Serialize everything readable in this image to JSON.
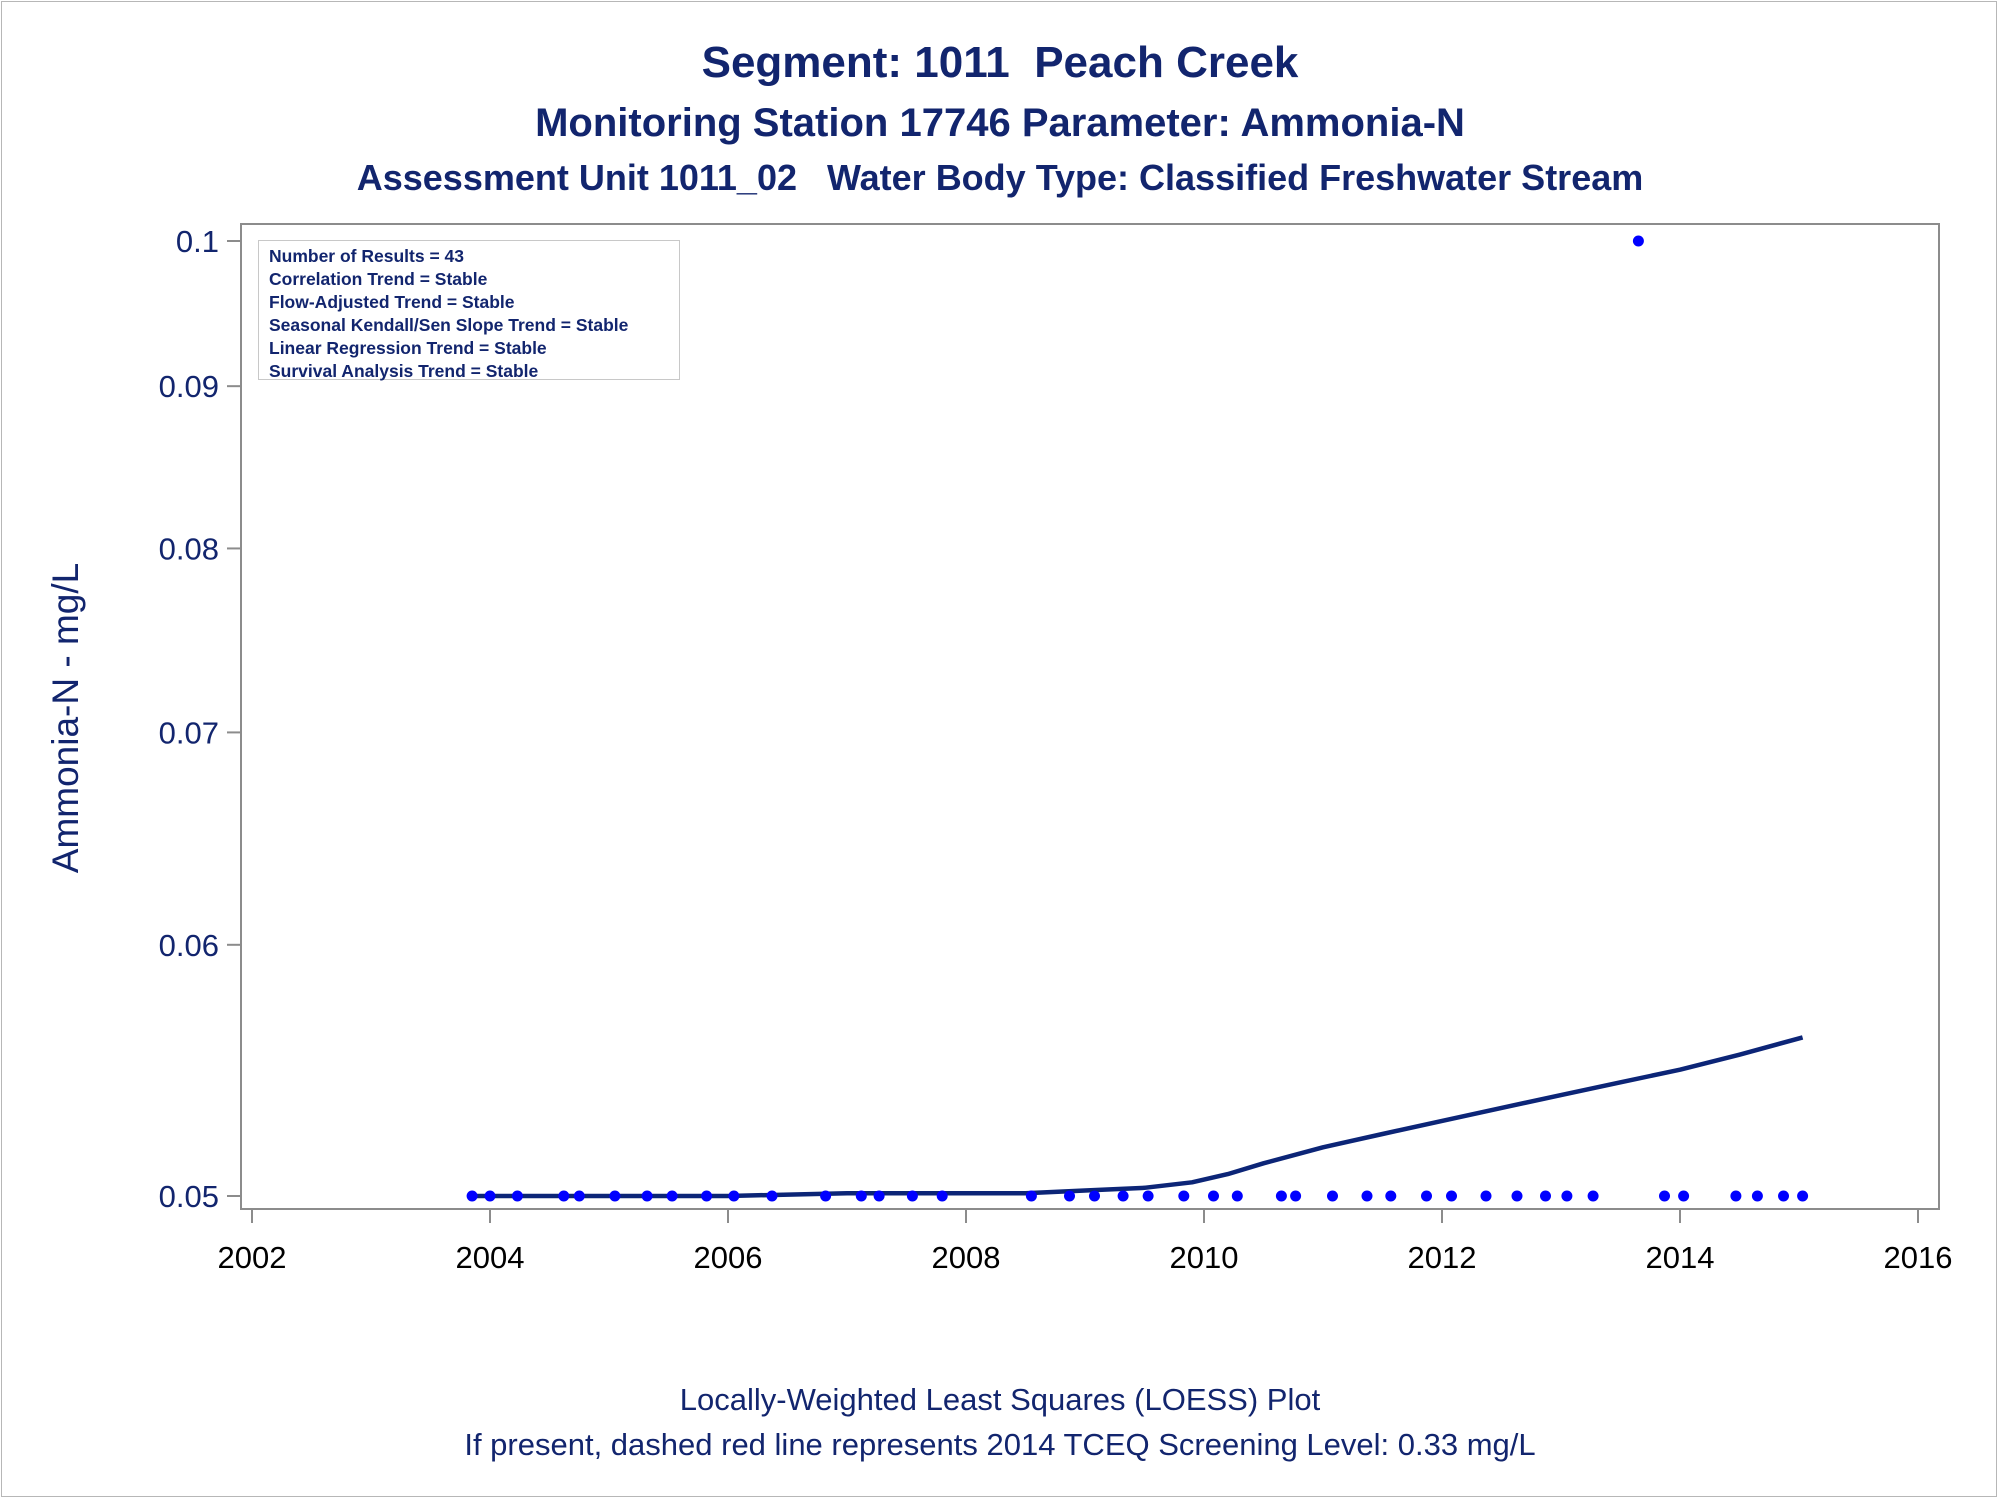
{
  "titles": {
    "line1": "Segment: 1011  Peach Creek",
    "line2": "Monitoring Station 17746 Parameter: Ammonia-N",
    "line3": "Assessment Unit 1011_02   Water Body Type: Classified Freshwater Stream"
  },
  "footnotes": {
    "line1": "Locally-Weighted Least Squares (LOESS) Plot",
    "line2": "If present, dashed red line represents 2014 TCEQ Screening Level: 0.33 mg/L"
  },
  "stats_box": [
    "Number of Results = 43",
    "Correlation Trend = Stable",
    "Flow-Adjusted Trend = Stable",
    "Seasonal Kendall/Sen Slope Trend = Stable",
    "Linear Regression Trend = Stable",
    "Survival Analysis Trend = Stable"
  ],
  "colors": {
    "points": "#0000ff",
    "loess_line": "#0c2577",
    "text": "#12256e",
    "axis": "#8c8c8c"
  },
  "chart_data": {
    "type": "scatter",
    "ylabel": "Ammonia-N - mg/L",
    "xlabel": "",
    "y_scale": "log",
    "xlim": [
      2002,
      2016
    ],
    "ylim": [
      0.05,
      0.1
    ],
    "x_ticks": [
      "2002",
      "2004",
      "2006",
      "2008",
      "2010",
      "2012",
      "2014",
      "2016"
    ],
    "y_ticks": [
      "0.05",
      "0.06",
      "0.07",
      "0.08",
      "0.09",
      "0.1"
    ],
    "grid": false,
    "series": [
      {
        "kind": "points",
        "x": [
          2003.85,
          2004.0,
          2004.23,
          2004.62,
          2004.75,
          2005.05,
          2005.32,
          2005.53,
          2005.82,
          2006.05,
          2006.37,
          2006.82,
          2007.12,
          2007.27,
          2007.55,
          2007.8,
          2008.55,
          2008.87,
          2009.08,
          2009.32,
          2009.53,
          2009.83,
          2010.08,
          2010.28,
          2010.65,
          2010.77,
          2011.08,
          2011.37,
          2011.57,
          2011.87,
          2012.08,
          2012.37,
          2012.63,
          2012.87,
          2013.05,
          2013.27,
          2013.65,
          2013.87,
          2014.03,
          2014.47,
          2014.65,
          2014.87,
          2015.03
        ],
        "y": [
          0.05,
          0.05,
          0.05,
          0.05,
          0.05,
          0.05,
          0.05,
          0.05,
          0.05,
          0.05,
          0.05,
          0.05,
          0.05,
          0.05,
          0.05,
          0.05,
          0.05,
          0.05,
          0.05,
          0.05,
          0.05,
          0.05,
          0.05,
          0.05,
          0.05,
          0.05,
          0.05,
          0.05,
          0.05,
          0.05,
          0.05,
          0.05,
          0.05,
          0.05,
          0.05,
          0.05,
          0.1,
          0.05,
          0.05,
          0.05,
          0.05,
          0.05,
          0.05
        ]
      },
      {
        "kind": "loess",
        "x": [
          2003.85,
          2005.0,
          2006.0,
          2007.0,
          2008.0,
          2008.5,
          2009.0,
          2009.5,
          2009.9,
          2010.2,
          2010.5,
          2011.0,
          2011.5,
          2012.0,
          2012.5,
          2013.0,
          2013.5,
          2014.0,
          2014.5,
          2015.03
        ],
        "y": [
          0.05,
          0.05,
          0.05,
          0.0501,
          0.0501,
          0.0501,
          0.0502,
          0.0503,
          0.0505,
          0.0508,
          0.0512,
          0.0518,
          0.0523,
          0.0528,
          0.0533,
          0.0538,
          0.0543,
          0.0548,
          0.0554,
          0.0561
        ]
      }
    ]
  }
}
